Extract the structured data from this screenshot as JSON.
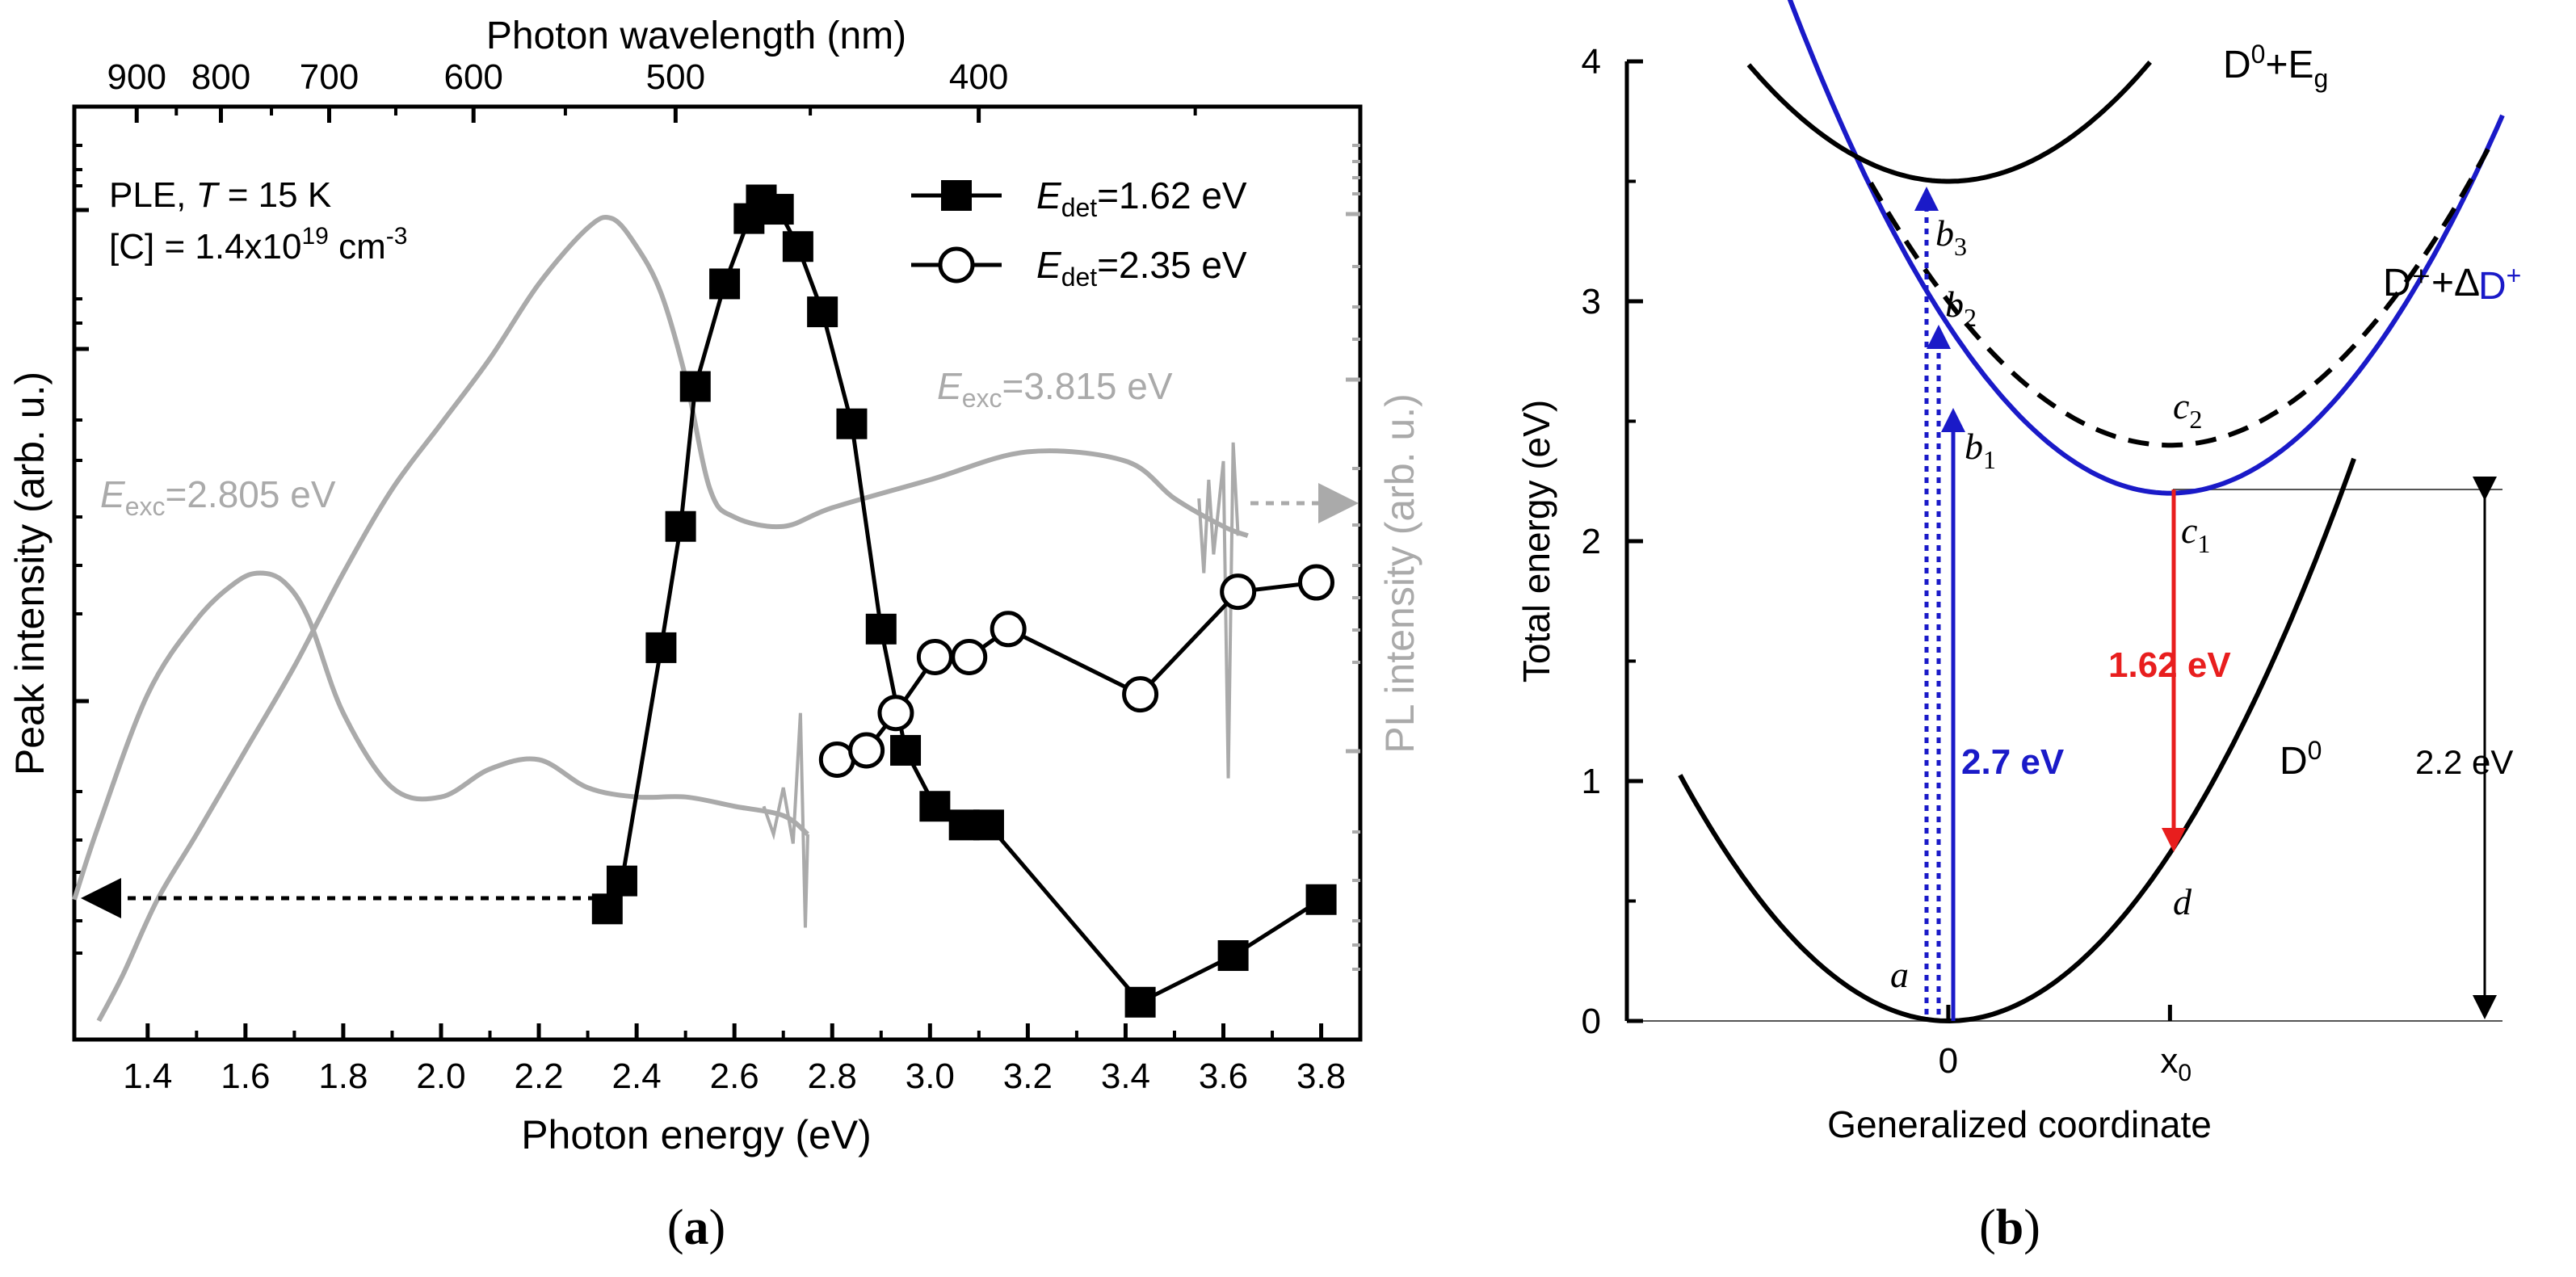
{
  "chart_data": [
    {
      "panel_label": "(a)",
      "type": "line",
      "xlabel": "Photon energy (eV)",
      "ylabel_left": "Peak intensity (arb. u.)",
      "ylabel_right": "PL intensity (arb. u.)",
      "top_axis_label": "Photon wavelength (nm)",
      "top_ticks": [
        "900",
        "800",
        "700",
        "600",
        "500",
        "400"
      ],
      "top_tick_values": [
        900,
        800,
        700,
        600,
        500,
        400
      ],
      "xlim": [
        1.25,
        3.88
      ],
      "xticks": [
        "1.4",
        "1.6",
        "1.8",
        "2.0",
        "2.2",
        "2.4",
        "2.6",
        "2.8",
        "3.0",
        "3.2",
        "3.4",
        "3.6",
        "3.8"
      ],
      "ylim": [
        0,
        100
      ],
      "annotation_lines": {
        "line1_prefix": "PLE, ",
        "line1_italic": "T",
        "line1_suffix": " = 15 K",
        "line2_prefix": "[C] = 1.4x10",
        "line2_sup": "19",
        "line2_suffix": " cm",
        "line2_unit_sup": "-3"
      },
      "legend": [
        {
          "symbol": "filled-square",
          "label_main": "E",
          "label_sub": "det",
          "label_value": "=1.62 eV"
        },
        {
          "symbol": "open-circle",
          "label_main": "E",
          "label_sub": "det",
          "label_value": "=2.35 eV"
        }
      ],
      "curve_labels": [
        {
          "main": "E",
          "sub": "exc",
          "value": "=3.815 eV"
        },
        {
          "main": "E",
          "sub": "exc",
          "value": "=2.805 eV"
        }
      ],
      "series": [
        {
          "name": "Edet=1.62 eV",
          "marker": "square",
          "x": [
            2.34,
            2.37,
            2.45,
            2.49,
            2.52,
            2.58,
            2.63,
            2.655,
            2.69,
            2.73,
            2.78,
            2.84,
            2.9,
            2.95,
            3.01,
            3.07,
            3.12,
            3.43,
            3.62,
            3.8
          ],
          "y": [
            14,
            17,
            42,
            55,
            70,
            81,
            88,
            90,
            89,
            85,
            78,
            66,
            44,
            31,
            25,
            23,
            23,
            4,
            9,
            15
          ]
        },
        {
          "name": "Edet=2.35 eV",
          "marker": "circle",
          "x": [
            2.81,
            2.87,
            2.93,
            3.01,
            3.08,
            3.16,
            3.43,
            3.63,
            3.79
          ],
          "y": [
            30,
            31,
            35,
            41,
            41,
            44,
            37,
            48,
            49
          ]
        },
        {
          "name": "Eexc=3.815 eV",
          "color": "#aaaaaa",
          "x": [
            1.3,
            1.35,
            1.42,
            1.5,
            1.6,
            1.7,
            1.8,
            1.9,
            2.0,
            2.1,
            2.2,
            2.3,
            2.35,
            2.4,
            2.45,
            2.5,
            2.55,
            2.6,
            2.7,
            2.8,
            3.0,
            3.2,
            3.4,
            3.5,
            3.6,
            3.65
          ],
          "y": [
            2,
            7,
            15,
            22,
            31,
            40,
            50,
            59,
            66,
            73,
            81,
            87,
            88,
            85,
            80,
            71,
            59,
            56,
            55,
            57,
            60,
            63,
            62,
            58,
            55,
            54
          ]
        },
        {
          "name": "Eexc=2.805 eV",
          "color": "#aaaaaa",
          "x": [
            1.25,
            1.3,
            1.4,
            1.5,
            1.58,
            1.63,
            1.68,
            1.73,
            1.8,
            1.9,
            2.0,
            2.1,
            2.2,
            2.3,
            2.4,
            2.5,
            2.6,
            2.7,
            2.75
          ],
          "y": [
            15,
            23,
            37,
            45,
            49,
            50,
            49,
            45,
            35,
            27,
            26,
            29,
            30,
            27,
            26,
            26,
            25,
            24,
            22
          ]
        }
      ]
    },
    {
      "panel_label": "(b)",
      "type": "diagram-curves",
      "xlabel": "Generalized coordinate",
      "ylabel": "Total energy (eV)",
      "ylim": [
        0,
        4
      ],
      "yticks": [
        "0",
        "1",
        "2",
        "3",
        "4"
      ],
      "xlim": [
        -1.45,
        2.5
      ],
      "xtick_zero": "0",
      "xtick_x0_main": "x",
      "xtick_x0_sub": "0",
      "curves": [
        {
          "name": "D0",
          "label_main": "D",
          "label_sup": "0",
          "formula": "E = 0.7*x^2",
          "minimum": [
            0,
            0
          ]
        },
        {
          "name": "D+",
          "label_main": "D",
          "label_sup": "+",
          "formula": "E = 2.2 + 0.7*(x-1)^2",
          "minimum": [
            1,
            2.2
          ],
          "color": "#1a1ac8"
        },
        {
          "name": "D+ + Delta",
          "label": "D⁺+Δ",
          "formula": "E = 2.4 + 0.6*(x-1)^2",
          "minimum": [
            1,
            2.4
          ],
          "dashed": true
        },
        {
          "name": "D0 + Eg",
          "label_main": "D",
          "label_sup": "0",
          "label_suffix": "+E",
          "label_sub": "g",
          "formula": "E = 3.5 + 0.6*x^2",
          "minimum": [
            0,
            3.5
          ]
        }
      ],
      "points": [
        {
          "label": "a",
          "italic": true
        },
        {
          "label": "b",
          "sub": "1"
        },
        {
          "label": "b",
          "sub": "2"
        },
        {
          "label": "b",
          "sub": "3"
        },
        {
          "label": "c",
          "sub": "1"
        },
        {
          "label": "c",
          "sub": "2"
        },
        {
          "label": "d",
          "italic": true
        }
      ],
      "transitions": [
        {
          "label": "2.7 eV",
          "from": 0,
          "to": 2.7,
          "color": "#1a1ac8",
          "style": "solid"
        },
        {
          "label": "1.62 eV",
          "from": 2.2,
          "to": 0.58,
          "color": "#e81e1e",
          "style": "solid"
        }
      ],
      "energy_gap_label": "2.2 eV"
    }
  ]
}
